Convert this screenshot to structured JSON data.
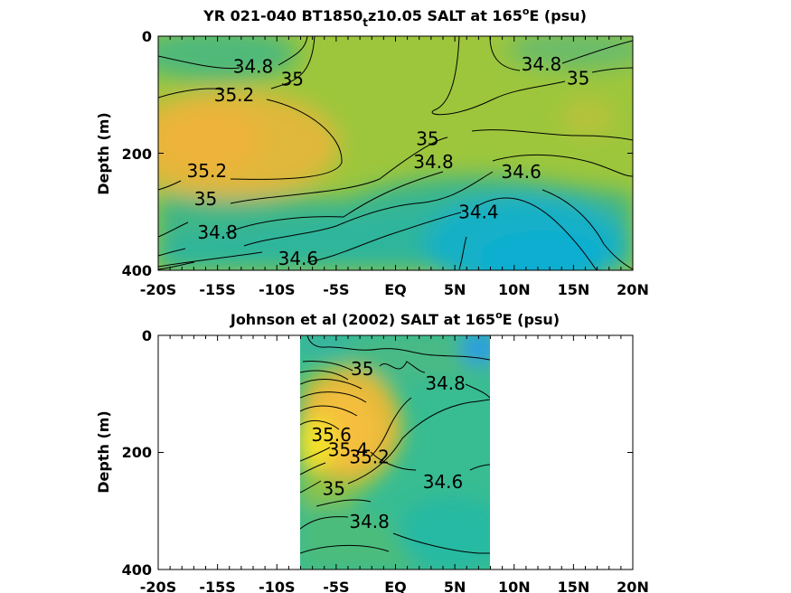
{
  "chart_data": [
    {
      "type": "heatmap",
      "title_main": "YR 021-040 BT1850",
      "title_sub": "t",
      "title_rest": "z10.05 SALT at 165",
      "title_sup": "o",
      "title_end": "E (psu)",
      "ylabel": "Depth (m)",
      "xticks": [
        "-20S",
        "-15S",
        "-10S",
        "-5S",
        "EQ",
        "5N",
        "10N",
        "15N",
        "20N"
      ],
      "yticks": [
        "0",
        "200",
        "400"
      ],
      "xlim": [
        -20,
        20
      ],
      "ylim": [
        0,
        400
      ],
      "y_reversed": true,
      "colormap": "parula",
      "contour_labels": [
        {
          "text": "34.8",
          "x": -12,
          "y": 52
        },
        {
          "text": "35",
          "x": -8.7,
          "y": 73
        },
        {
          "text": "35.2",
          "x": -13.6,
          "y": 100
        },
        {
          "text": "34.8",
          "x": 12.3,
          "y": 48
        },
        {
          "text": "35",
          "x": 15.4,
          "y": 72
        },
        {
          "text": "35",
          "x": 2.7,
          "y": 175
        },
        {
          "text": "34.8",
          "x": 3.2,
          "y": 215
        },
        {
          "text": "34.6",
          "x": 10.6,
          "y": 232
        },
        {
          "text": "35.2",
          "x": -15.9,
          "y": 230
        },
        {
          "text": "35",
          "x": -16,
          "y": 278
        },
        {
          "text": "34.8",
          "x": -15,
          "y": 335
        },
        {
          "text": "34.4",
          "x": 7,
          "y": 300
        },
        {
          "text": "34.6",
          "x": -8.2,
          "y": 380
        }
      ]
    },
    {
      "type": "heatmap",
      "title_main": "Johnson et al (2002) SALT at 165",
      "title_sup": "o",
      "title_end": "E (psu)",
      "ylabel": "Depth (m)",
      "xticks": [
        "-20S",
        "-15S",
        "-10S",
        "-5S",
        "EQ",
        "5N",
        "10N",
        "15N",
        "20N"
      ],
      "yticks": [
        "0",
        "200",
        "400"
      ],
      "xlim": [
        -20,
        20
      ],
      "ylim": [
        0,
        400
      ],
      "y_reversed": true,
      "data_xlim": [
        -8,
        8
      ],
      "colormap": "parula",
      "contour_labels": [
        {
          "text": "35",
          "x": -2.8,
          "y": 57
        },
        {
          "text": "34.8",
          "x": 4.2,
          "y": 82
        },
        {
          "text": "35.6",
          "x": -5.4,
          "y": 170
        },
        {
          "text": "35.4",
          "x": -4,
          "y": 195
        },
        {
          "text": "35.2",
          "x": -2.2,
          "y": 208
        },
        {
          "text": "35",
          "x": -5.2,
          "y": 262
        },
        {
          "text": "34.6",
          "x": 4,
          "y": 250
        },
        {
          "text": "34.8",
          "x": -2.2,
          "y": 318
        }
      ]
    }
  ]
}
